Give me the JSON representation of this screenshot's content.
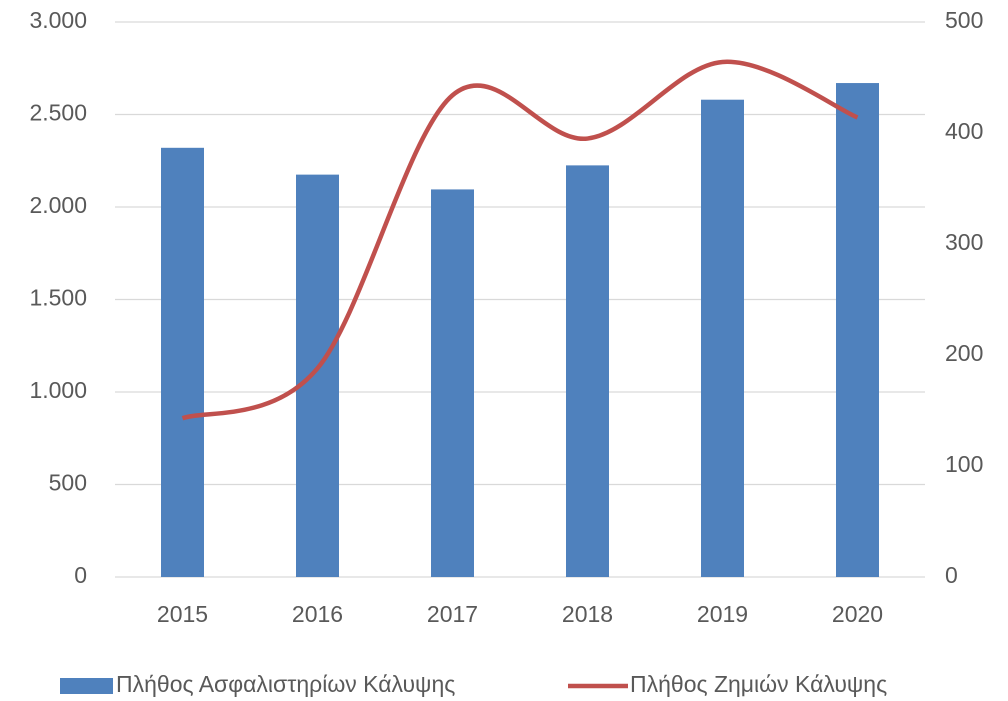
{
  "chart_data": {
    "type": "bar_line",
    "categories": [
      "2015",
      "2016",
      "2017",
      "2018",
      "2019",
      "2020"
    ],
    "series": [
      {
        "name": "Πλήθος Ασφαλιστηρίων Κάλυψης",
        "type": "bar",
        "color": "#4f81bd",
        "values": [
          2320,
          2175,
          2095,
          2225,
          2580,
          2670
        ]
      },
      {
        "name": "Πλήθος Ζημιών Κάλυψης",
        "type": "line",
        "axis": "y2",
        "color": "#c0504d",
        "values": [
          143,
          188,
          434,
          395,
          464,
          414
        ]
      }
    ],
    "ylim": [
      0,
      3000
    ],
    "yticks": [
      0,
      {
        "value": 500,
        "label": "500"
      },
      {
        "value": 1000,
        "label": "1.000"
      },
      {
        "value": 1500,
        "label": "1.500"
      },
      {
        "value": 2000,
        "label": "2.000"
      },
      {
        "value": 2500,
        "label": "2.500"
      },
      {
        "value": 3000,
        "label": "3.000"
      }
    ],
    "y2lim": [
      0,
      500
    ],
    "y2ticks": [
      0,
      100,
      200,
      300,
      400,
      500
    ],
    "grid": true,
    "legend": "bottom"
  }
}
